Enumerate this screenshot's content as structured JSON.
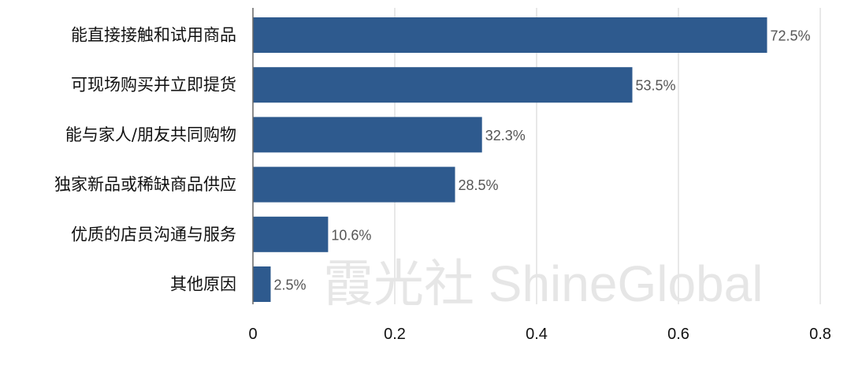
{
  "chart_data": {
    "type": "bar",
    "orientation": "horizontal",
    "categories": [
      "能直接接触和试用商品",
      "可现场购买并立即提货",
      "能与家人/朋友共同购物",
      "独家新品或稀缺商品供应",
      "优质的店员沟通与服务",
      "其他原因"
    ],
    "values": [
      0.725,
      0.535,
      0.323,
      0.285,
      0.106,
      0.025
    ],
    "data_labels": [
      "72.5%",
      "53.5%",
      "32.3%",
      "28.5%",
      "10.6%",
      "2.5%"
    ],
    "xlim": [
      0,
      0.8
    ],
    "x_ticks": [
      "0",
      "0.2",
      "0.4",
      "0.6",
      "0.8"
    ],
    "x_tick_values": [
      0,
      0.2,
      0.4,
      0.6,
      0.8
    ],
    "grid": "vertical",
    "bar_color": "#2e5a8e",
    "title": "",
    "xlabel": "",
    "ylabel": ""
  },
  "watermark": "霞光社 ShineGlobal"
}
